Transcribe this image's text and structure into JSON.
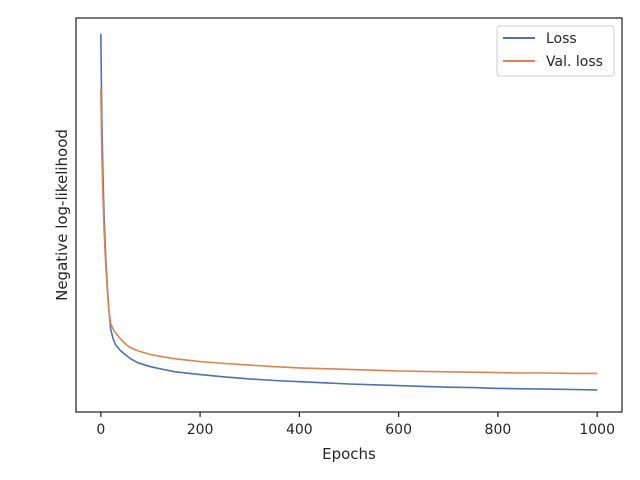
{
  "chart_data": {
    "type": "line",
    "title": "",
    "xlabel": "Epochs",
    "ylabel": "Negative log-likelihood",
    "xlim": [
      -50,
      1050
    ],
    "ylim": [
      0,
      1
    ],
    "xticks": [
      0,
      200,
      400,
      600,
      800,
      1000
    ],
    "yticks": [],
    "grid": false,
    "legend_position": "top-right",
    "series": [
      {
        "name": "Loss",
        "color": "#4c72b0",
        "x": [
          0,
          2,
          4,
          6,
          8,
          10,
          13,
          16,
          20,
          25,
          30,
          40,
          50,
          60,
          75,
          100,
          125,
          150,
          200,
          250,
          300,
          350,
          400,
          450,
          500,
          550,
          600,
          650,
          700,
          750,
          800,
          850,
          900,
          950,
          1000
        ],
        "values": [
          0.96,
          0.75,
          0.62,
          0.52,
          0.45,
          0.39,
          0.32,
          0.26,
          0.21,
          0.185,
          0.17,
          0.155,
          0.145,
          0.135,
          0.125,
          0.115,
          0.108,
          0.102,
          0.095,
          0.089,
          0.084,
          0.08,
          0.077,
          0.074,
          0.071,
          0.069,
          0.067,
          0.065,
          0.063,
          0.062,
          0.06,
          0.059,
          0.058,
          0.057,
          0.056
        ]
      },
      {
        "name": "Val. loss",
        "color": "#dd8452",
        "x": [
          0,
          2,
          4,
          6,
          8,
          10,
          13,
          16,
          20,
          25,
          30,
          40,
          50,
          60,
          75,
          100,
          125,
          150,
          200,
          250,
          300,
          350,
          400,
          450,
          500,
          550,
          600,
          650,
          700,
          750,
          800,
          850,
          900,
          950,
          1000
        ],
        "values": [
          0.82,
          0.66,
          0.56,
          0.48,
          0.42,
          0.37,
          0.31,
          0.26,
          0.225,
          0.21,
          0.2,
          0.185,
          0.172,
          0.163,
          0.155,
          0.146,
          0.14,
          0.135,
          0.128,
          0.123,
          0.119,
          0.115,
          0.112,
          0.11,
          0.108,
          0.106,
          0.104,
          0.103,
          0.102,
          0.101,
          0.1,
          0.099,
          0.099,
          0.098,
          0.098
        ]
      }
    ]
  }
}
